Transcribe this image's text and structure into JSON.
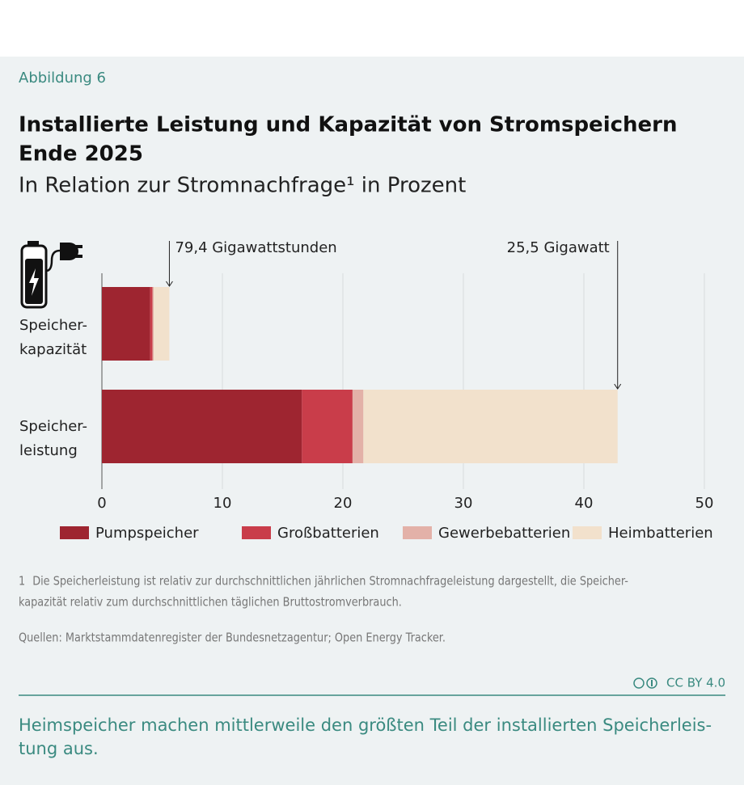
{
  "figure_label": "Abbildung 6",
  "chart_data": {
    "type": "bar",
    "stacked": true,
    "grid": true,
    "title": [
      "Installierte Leistung und Kapazität von Stromspeichern",
      "Ende 2025"
    ],
    "subtitle": "In Relation zur Stromnachfrage¹ in Prozent",
    "categories": [
      "Speicher-\nkapazität",
      "Speicher-\nleistung"
    ],
    "series": [
      {
        "name": "Pumpspeicher",
        "color": "#9e2530",
        "values": [
          4.0,
          16.6
        ]
      },
      {
        "name": "Großbatterien",
        "color": "#c93d4a",
        "values": [
          0.2,
          4.2
        ]
      },
      {
        "name": "Gewerbebatterien",
        "color": "#e3b1a8",
        "values": [
          0.1,
          0.9
        ]
      },
      {
        "name": "Heimbatterien",
        "color": "#f2e1cc",
        "values": [
          1.3,
          21.1
        ]
      }
    ],
    "xlim": [
      0,
      50
    ],
    "xticks": [
      0,
      10,
      20,
      30,
      40,
      50
    ],
    "annotations": [
      "79,4 Gigawattstunden",
      "25,5 Gigawatt"
    ]
  },
  "footnote": {
    "number": "1",
    "lines": [
      "Die Speicherleistung ist relativ zur durchschnittlichen jährlichen Stromnachfrageleistung dargestellt, die Speicher-",
      "kapazität relativ zum durchschnittlichen täglichen Bruttostromverbrauch."
    ]
  },
  "source": "Quellen: Marktstammdatenregister der Bundesnetzagentur; Open Energy Tracker.",
  "license": "CC BY 4.0",
  "caption": [
    "Heimspeicher machen mittlerweile den größten Teil der installierten Speicherleis-",
    "tung aus."
  ]
}
